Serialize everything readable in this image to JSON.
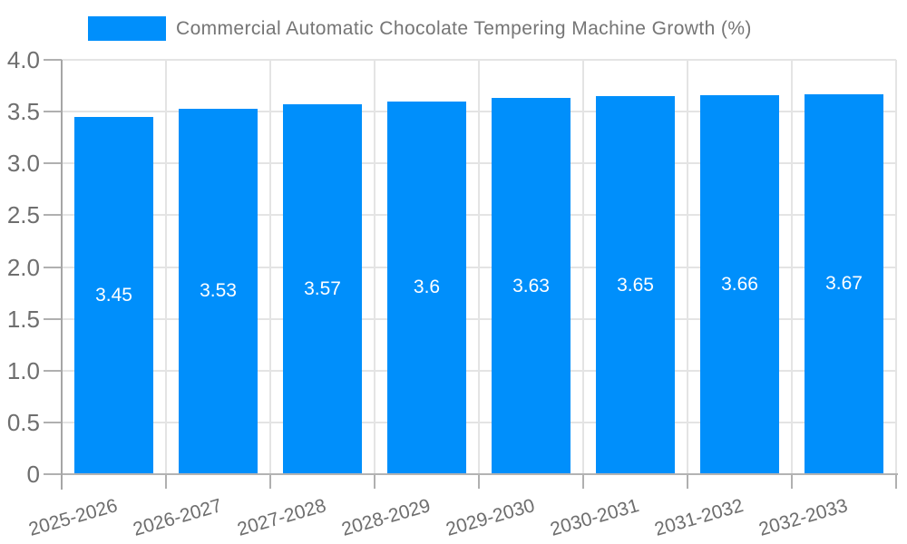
{
  "legend": {
    "position": "top",
    "swatch": "series-color-swatch"
  },
  "colors": {
    "bar": "#008ffb",
    "grid": "#e4e4e4",
    "axis": "#a6a6a6",
    "tick": "#b0b0b0",
    "baseline": "#b3b3b3",
    "axis_label": "#6e6e6e",
    "title": "#757575",
    "value_label": "#ffffff",
    "background": "#ffffff"
  },
  "chart_data": {
    "type": "bar",
    "title": "Commercial Automatic Chocolate Tempering Machine Growth (%)",
    "categories": [
      "2025-2026",
      "2026-2027",
      "2027-2028",
      "2028-2029",
      "2029-2030",
      "2030-2031",
      "2031-2032",
      "2032-2033"
    ],
    "values": [
      3.45,
      3.53,
      3.57,
      3.6,
      3.63,
      3.65,
      3.66,
      3.67
    ],
    "value_labels": [
      "3.45",
      "3.53",
      "3.57",
      "3.6",
      "3.63",
      "3.65",
      "3.66",
      "3.67"
    ],
    "xlabel": "",
    "ylabel": "",
    "ylim": [
      0,
      4
    ],
    "yticks": [
      {
        "label": "0",
        "value": 0
      },
      {
        "label": "0.5",
        "value": 0.5
      },
      {
        "label": "1.0",
        "value": 1
      },
      {
        "label": "1.5",
        "value": 1.5
      },
      {
        "label": "2.0",
        "value": 2
      },
      {
        "label": "2.5",
        "value": 2.5
      },
      {
        "label": "3.0",
        "value": 3
      },
      {
        "label": "3.5",
        "value": 3.5
      },
      {
        "label": "4.0",
        "value": 4
      }
    ],
    "grid": true,
    "legend_position": "top"
  }
}
